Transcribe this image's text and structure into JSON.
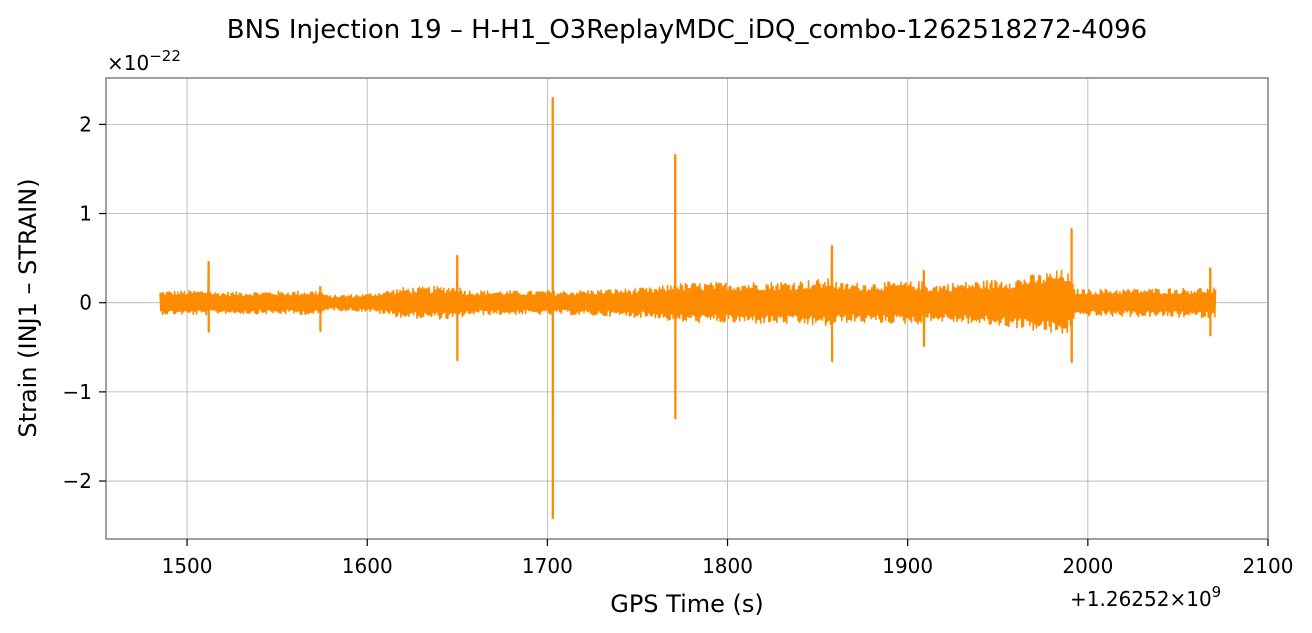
{
  "chart_data": {
    "type": "line",
    "title": "BNS Injection 19 – H-H1_O3ReplayMDC_iDQ_combo-1262518272-4096",
    "xlabel": "GPS Time (s)",
    "ylabel": "Strain (INJ1 – STRAIN)",
    "x_offset_text": "+1.26252×10",
    "x_offset_exp": "9",
    "y_scale_text": "×10",
    "y_scale_exp": "−22",
    "xlim": [
      1455,
      2100
    ],
    "ylim": [
      -2.65,
      2.52
    ],
    "xticks": [
      1500,
      1600,
      1700,
      1800,
      1900,
      2000,
      2100
    ],
    "xtick_labels": [
      "1500",
      "1600",
      "1700",
      "1800",
      "1900",
      "2000",
      "2100"
    ],
    "yticks": [
      -2,
      -1,
      0,
      1,
      2
    ],
    "ytick_labels": [
      "−2",
      "−1",
      "0",
      "1",
      "2"
    ],
    "grid": true,
    "series": [
      {
        "color": "#ff8c00",
        "x_start": 1485,
        "x_end": 2071,
        "noise_envelope": [
          [
            1485,
            0.13
          ],
          [
            1512,
            0.14
          ],
          [
            1515,
            0.12
          ],
          [
            1560,
            0.13
          ],
          [
            1574,
            0.14
          ],
          [
            1578,
            0.08
          ],
          [
            1600,
            0.1
          ],
          [
            1620,
            0.17
          ],
          [
            1650,
            0.19
          ],
          [
            1655,
            0.14
          ],
          [
            1690,
            0.13
          ],
          [
            1702,
            0.14
          ],
          [
            1705,
            0.13
          ],
          [
            1760,
            0.17
          ],
          [
            1771,
            0.22
          ],
          [
            1775,
            0.22
          ],
          [
            1830,
            0.24
          ],
          [
            1858,
            0.27
          ],
          [
            1862,
            0.22
          ],
          [
            1908,
            0.24
          ],
          [
            1912,
            0.2
          ],
          [
            1960,
            0.28
          ],
          [
            1988,
            0.38
          ],
          [
            1993,
            0.15
          ],
          [
            2040,
            0.16
          ],
          [
            2071,
            0.17
          ]
        ],
        "spikes": [
          {
            "x": 1512,
            "max": 0.46,
            "min": -0.33
          },
          {
            "x": 1574,
            "max": 0.18,
            "min": -0.32
          },
          {
            "x": 1650,
            "max": 0.53,
            "min": -0.65
          },
          {
            "x": 1703,
            "max": 2.3,
            "min": -2.42
          },
          {
            "x": 1771,
            "max": 1.66,
            "min": -1.3
          },
          {
            "x": 1858,
            "max": 0.64,
            "min": -0.66
          },
          {
            "x": 1909,
            "max": 0.36,
            "min": -0.49
          },
          {
            "x": 1991,
            "max": 0.83,
            "min": -0.67
          },
          {
            "x": 2068,
            "max": 0.39,
            "min": -0.37
          }
        ]
      }
    ]
  }
}
